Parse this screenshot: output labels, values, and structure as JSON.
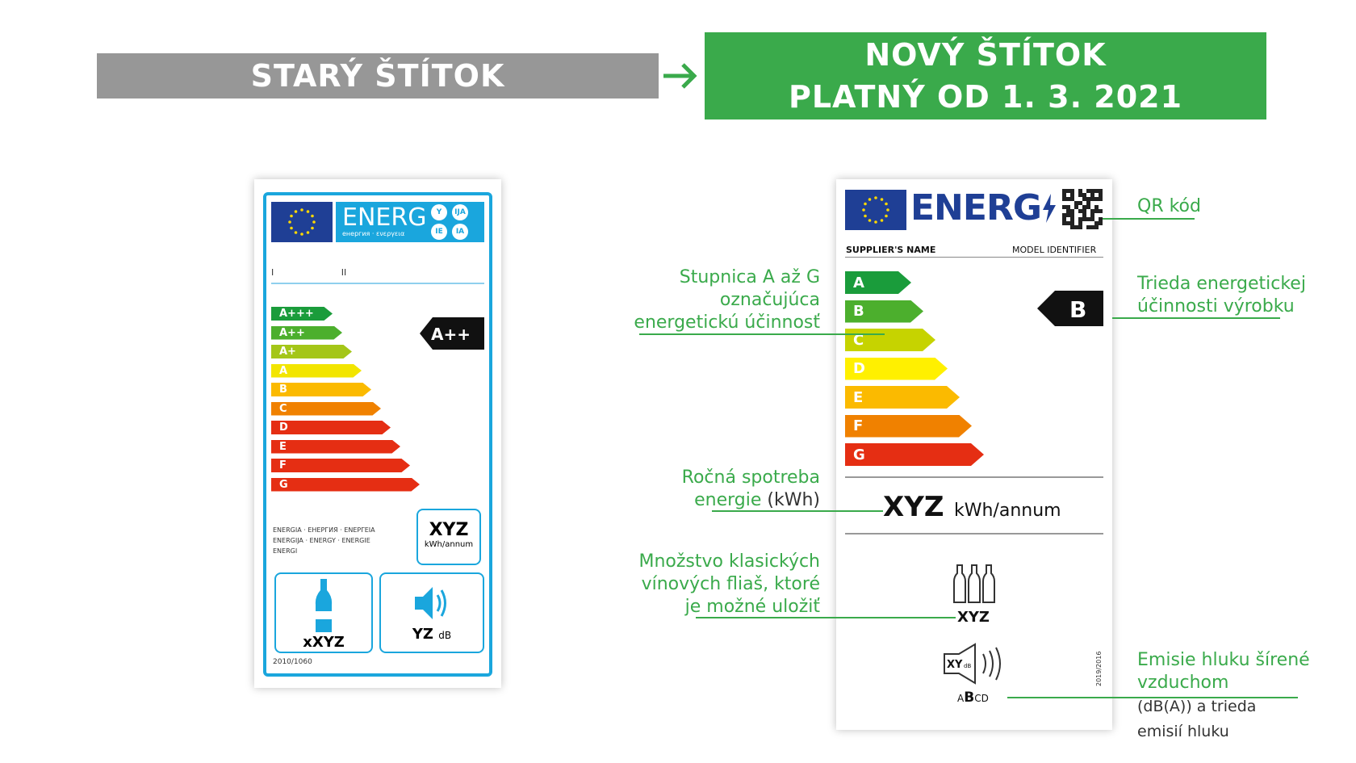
{
  "headers": {
    "old": "STARÝ ŠTÍTOK",
    "new_line1": "NOVÝ ŠTÍTOK",
    "new_line2": "PLATNÝ OD 1. 3. 2021"
  },
  "old_label": {
    "energ_word": "ENERG",
    "energ_sub": "енергия · ενεργεια",
    "lang_circles": [
      "Y",
      "IJA",
      "IE",
      "IA"
    ],
    "ticks": [
      "I",
      "II"
    ],
    "scale": [
      "A+++",
      "A++",
      "A+",
      "A",
      "B",
      "C",
      "D",
      "E",
      "F",
      "G"
    ],
    "scale_colors": [
      "#1a9c3b",
      "#4caf2d",
      "#a4c618",
      "#f2e500",
      "#fbba00",
      "#f08100",
      "#e52e13",
      "#e52e13",
      "#e52e13",
      "#e52e13"
    ],
    "class": "A++",
    "languages": [
      "ENERGIA · ЕНЕРГИЯ · ΕΝΕΡΓΕΙΑ",
      "ENERGIJA · ENERGY · ENERGIE",
      "ENERGI"
    ],
    "energy_value": "XYZ",
    "energy_unit": "kWh/annum",
    "bottles_value": "xXYZ",
    "noise_value": "YZ",
    "noise_unit": "dB",
    "regulation": "2010/1060"
  },
  "new_label": {
    "energ_word": "ENERG",
    "supplier": "SUPPLIER'S NAME",
    "model": "MODEL IDENTIFIER",
    "scale": [
      "A",
      "B",
      "C",
      "D",
      "E",
      "F",
      "G"
    ],
    "scale_colors": [
      "#1a9c3b",
      "#4caf2d",
      "#c6d300",
      "#fff000",
      "#fbba00",
      "#f08100",
      "#e52e13"
    ],
    "class": "B",
    "energy_value": "XYZ",
    "energy_unit": "kWh/annum",
    "bottles_value": "XYZ",
    "noise_badge": "XY",
    "noise_badge_unit": "dB",
    "noise_classes_pre": "A",
    "noise_class_sel": "B",
    "noise_classes_post": "CD",
    "regulation": "2019/2016"
  },
  "annotations": {
    "qr": "QR kód",
    "scale_l1": "Stupnica A až G",
    "scale_l2": "označujúca",
    "scale_l3": "energetickú účinnosť",
    "class_l1": "Trieda energetickej",
    "class_l2": "účinnosti výrobku",
    "energy_l1": "Ročná spotreba",
    "energy_l2a": "energie",
    "energy_l2b": "(kWh)",
    "bottles_l1": "Množstvo klasických",
    "bottles_l2": "vínových fliaš, ktoré",
    "bottles_l3": "je možné uložiť",
    "noise_l1": "Emisie hluku šírené",
    "noise_l2": "vzduchom",
    "noise_l3": "(dB(A)) a trieda",
    "noise_l4": "emisií hluku"
  },
  "colors": {
    "green": "#3aaa4b",
    "grey": "#979797",
    "eu_blue": "#1f3f95",
    "old_blue": "#1aa6dd"
  }
}
